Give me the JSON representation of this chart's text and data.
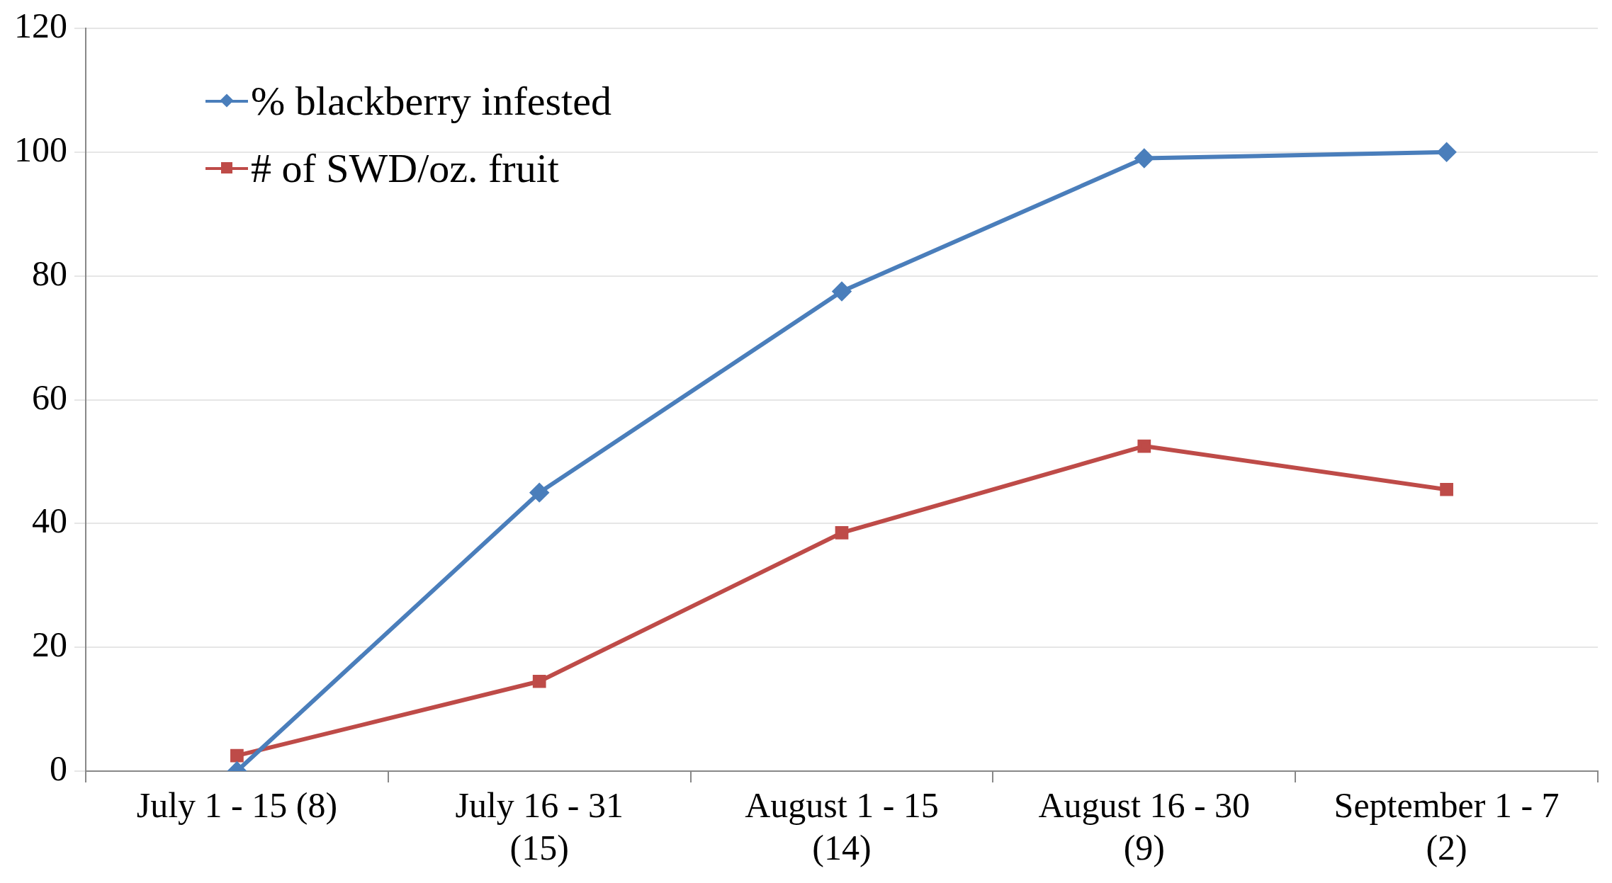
{
  "chart_data": {
    "type": "line",
    "categories": [
      "July 1 - 15 (8)",
      "July 16 - 31 (15)",
      "August 1 - 15 (14)",
      "August 16 - 30 (9)",
      "September 1 - 7 (2)"
    ],
    "series": [
      {
        "name": "% blackberry infested",
        "color": "#4a7ebb",
        "marker": "diamond",
        "values": [
          0,
          45,
          77.5,
          99,
          100
        ]
      },
      {
        "name": "# of SWD/oz. fruit",
        "color": "#be4b48",
        "marker": "square",
        "values": [
          2.5,
          14.5,
          38.5,
          52.5,
          45.5
        ]
      }
    ],
    "ylim": [
      0,
      120
    ],
    "yticks": [
      0,
      20,
      40,
      60,
      80,
      100,
      120
    ],
    "grid": "y",
    "legend": "top left",
    "line_style": "solid"
  }
}
